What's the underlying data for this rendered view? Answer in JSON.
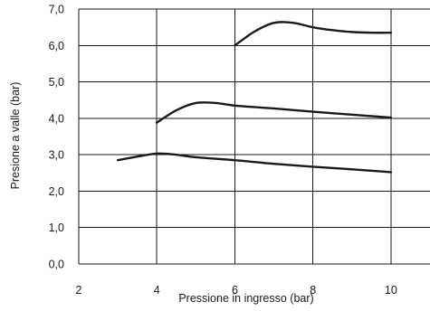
{
  "chart_data": {
    "type": "line",
    "title": "",
    "xlabel": "Pressione in ingresso (bar)",
    "ylabel": "Presione a valle (bar)",
    "xlim": [
      2,
      11
    ],
    "ylim": [
      0,
      7
    ],
    "x_ticks": [
      2,
      4,
      6,
      8,
      10
    ],
    "x_tick_labels": [
      "2",
      "4",
      "6",
      "8",
      "10"
    ],
    "y_ticks": [
      0,
      1,
      2,
      3,
      4,
      5,
      6,
      7
    ],
    "y_tick_labels": [
      "0,0",
      "1,0",
      "2,0",
      "3,0",
      "4,0",
      "5,0",
      "6,0",
      "7,0"
    ],
    "grid": true,
    "line_color": "#1a1a1a",
    "series": [
      {
        "x": [
          3.0,
          3.5,
          4.0,
          4.5,
          5.0,
          6.0,
          7.0,
          8.0,
          9.0,
          10.0
        ],
        "y": [
          2.85,
          2.95,
          3.03,
          3.0,
          2.93,
          2.85,
          2.75,
          2.67,
          2.6,
          2.52
        ]
      },
      {
        "x": [
          4.0,
          4.5,
          5.0,
          5.5,
          6.0,
          7.0,
          8.0,
          9.0,
          10.0
        ],
        "y": [
          3.88,
          4.22,
          4.42,
          4.42,
          4.35,
          4.27,
          4.18,
          4.1,
          4.02
        ]
      },
      {
        "x": [
          6.0,
          6.5,
          7.0,
          7.5,
          8.0,
          8.5,
          9.0,
          9.5,
          10.0
        ],
        "y": [
          6.0,
          6.38,
          6.62,
          6.62,
          6.5,
          6.42,
          6.37,
          6.35,
          6.35
        ]
      }
    ]
  }
}
